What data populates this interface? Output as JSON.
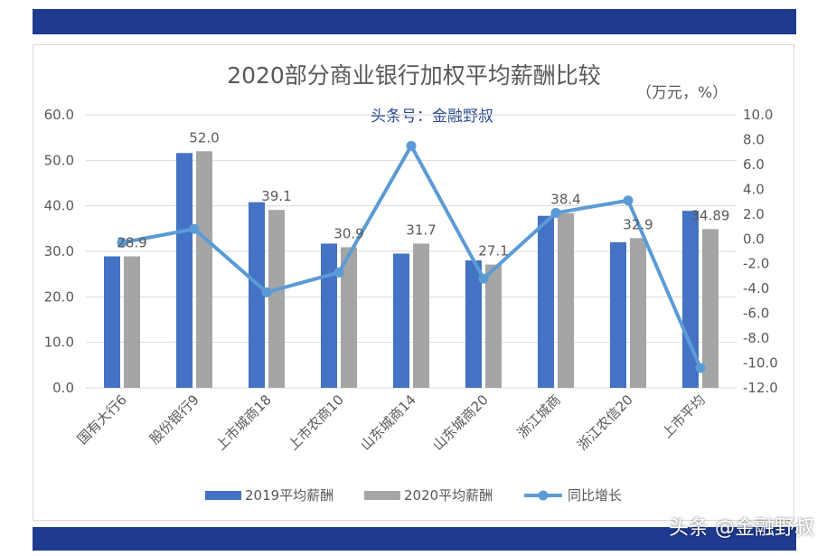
{
  "header_band": {
    "color": "#1f3b8f"
  },
  "watermark": "头条 @金融野叔",
  "chart_data": {
    "type": "bar",
    "title": "2020部分商业银行加权平均薪酬比较",
    "unit_note": "（万元，%）",
    "subtitle": "头条号：金融野叔",
    "categories": [
      "国有大行6",
      "股份银行9",
      "上市城商18",
      "上市农商10",
      "山东城商14",
      "山东城商20",
      "浙江城商",
      "浙江农信20",
      "上市平均"
    ],
    "series": [
      {
        "name": "2019平均薪酬",
        "type": "bar",
        "axis": "left",
        "color": "#4472c4",
        "values": [
          28.9,
          51.6,
          40.8,
          31.7,
          29.5,
          28.0,
          37.8,
          32.0,
          38.9
        ]
      },
      {
        "name": "2020平均薪酬",
        "type": "bar",
        "axis": "left",
        "color": "#a5a5a5",
        "values": [
          28.9,
          52.0,
          39.1,
          30.9,
          31.7,
          27.1,
          38.4,
          32.9,
          34.89
        ]
      },
      {
        "name": "同比增长",
        "type": "line",
        "axis": "right",
        "color": "#5b9bd5",
        "values": [
          -0.3,
          0.8,
          -4.3,
          -2.7,
          7.5,
          -3.2,
          2.1,
          3.1,
          -10.4
        ]
      }
    ],
    "data_labels": [
      "28.9",
      "52.0",
      "39.1",
      "30.9",
      "31.7",
      "27.1",
      "38.4",
      "32.9",
      "34.89"
    ],
    "y_left": {
      "min": 0,
      "max": 60,
      "step": 10,
      "ticks": [
        "0.0",
        "10.0",
        "20.0",
        "30.0",
        "40.0",
        "50.0",
        "60.0"
      ]
    },
    "y_right": {
      "min": -12,
      "max": 10,
      "step": 2,
      "ticks": [
        "-12.0",
        "-10.0",
        "-8.0",
        "-6.0",
        "-4.0",
        "-2.0",
        "0.0",
        "2.0",
        "4.0",
        "6.0",
        "8.0",
        "10.0"
      ]
    },
    "grid": true,
    "legend_position": "bottom"
  }
}
